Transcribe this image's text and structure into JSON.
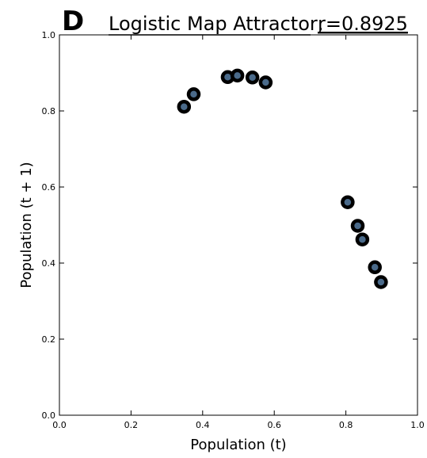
{
  "panel_label": "D",
  "chart_data": {
    "type": "scatter",
    "title": "Logistic Map Attractor,",
    "title_param": "r=0.8925",
    "xlabel": "Population (t)",
    "ylabel": "Population (t + 1)",
    "xlim": [
      0.0,
      1.0
    ],
    "ylim": [
      0.0,
      1.0
    ],
    "xticks": [
      0.0,
      0.2,
      0.4,
      0.6,
      0.8,
      1.0
    ],
    "yticks": [
      0.0,
      0.2,
      0.4,
      0.6,
      0.8,
      1.0
    ],
    "xtick_labels": [
      "0.0",
      "0.2",
      "0.4",
      "0.6",
      "0.8",
      "1.0"
    ],
    "ytick_labels": [
      "0.0",
      "0.2",
      "0.4",
      "0.6",
      "0.8",
      "1.0"
    ],
    "grid": false,
    "marker_edge_color": "#000000",
    "marker_face_color": "#4a6a8a",
    "points": [
      {
        "x": 0.348,
        "y": 0.811
      },
      {
        "x": 0.375,
        "y": 0.844
      },
      {
        "x": 0.47,
        "y": 0.889
      },
      {
        "x": 0.497,
        "y": 0.893
      },
      {
        "x": 0.539,
        "y": 0.888
      },
      {
        "x": 0.576,
        "y": 0.875
      },
      {
        "x": 0.805,
        "y": 0.56
      },
      {
        "x": 0.833,
        "y": 0.498
      },
      {
        "x": 0.846,
        "y": 0.462
      },
      {
        "x": 0.881,
        "y": 0.389
      },
      {
        "x": 0.898,
        "y": 0.35
      }
    ]
  }
}
